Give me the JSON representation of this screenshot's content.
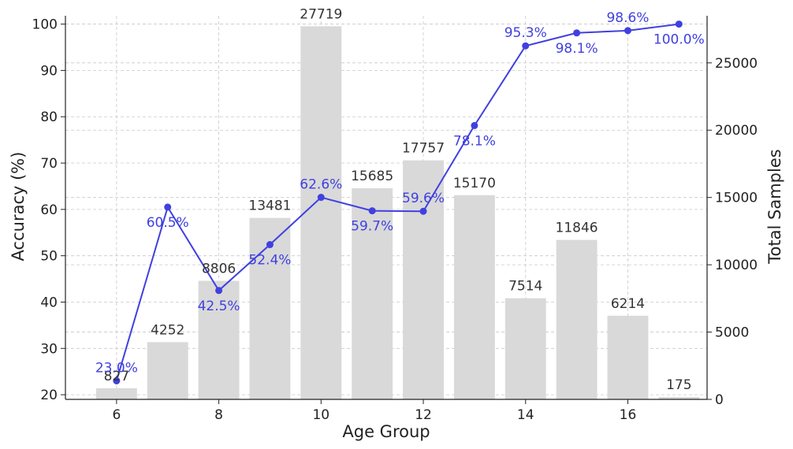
{
  "chart_data": {
    "type": "bar",
    "xlabel": "Age Group",
    "ylabel_left": "Accuracy (%)",
    "ylabel_right": "Total Samples",
    "x": [
      6,
      7,
      8,
      9,
      10,
      11,
      12,
      13,
      14,
      15,
      16,
      17
    ],
    "x_ticks": [
      "6",
      "8",
      "10",
      "12",
      "14",
      "16"
    ],
    "xlim": [
      5.0,
      17.55
    ],
    "ylim_left": [
      19.0,
      101.8
    ],
    "ylim_right": [
      0,
      28500
    ],
    "y_ticks_left": [
      "20",
      "30",
      "40",
      "50",
      "60",
      "70",
      "80",
      "90",
      "100"
    ],
    "y_ticks_right": [
      "0",
      "5000",
      "10000",
      "15000",
      "20000",
      "25000"
    ],
    "series": [
      {
        "name": "Total Samples",
        "type": "bar",
        "axis": "right",
        "color": "#d9d9d9",
        "values": [
          827,
          4252,
          8806,
          13481,
          27719,
          15685,
          17757,
          15170,
          7514,
          11846,
          6214,
          175
        ]
      },
      {
        "name": "Accuracy",
        "type": "line",
        "axis": "left",
        "color": "#4040e0",
        "values": [
          23.0,
          60.5,
          42.5,
          52.4,
          62.6,
          59.7,
          59.6,
          78.1,
          95.3,
          98.1,
          98.6,
          100.0
        ],
        "labels": [
          "23.0%",
          "60.5%",
          "42.5%",
          "52.4%",
          "62.6%",
          "59.7%",
          "59.6%",
          "78.1%",
          "95.3%",
          "98.1%",
          "98.6%",
          "100.0%"
        ]
      }
    ],
    "grid": true,
    "legend": "none"
  }
}
